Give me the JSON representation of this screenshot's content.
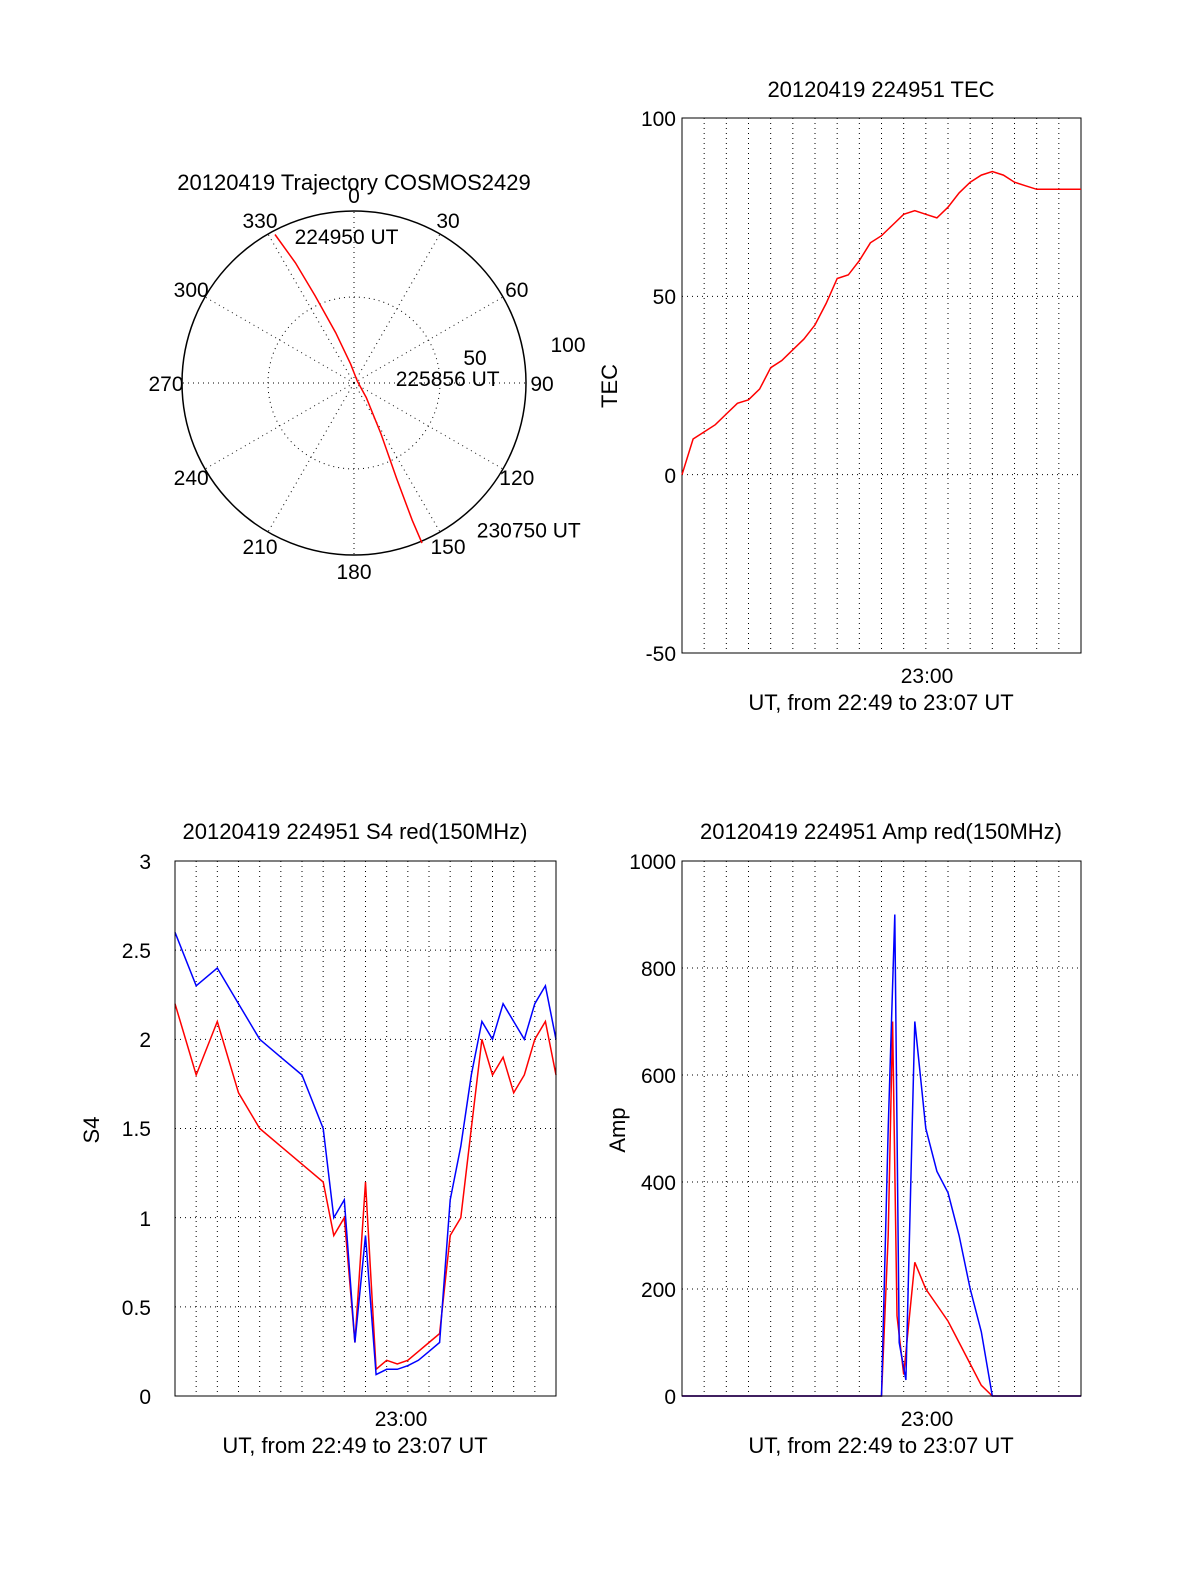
{
  "chart_data": [
    {
      "type": "polar",
      "title": "20120419 Trajectory COSMOS2429",
      "angle_labels": [
        "0",
        "30",
        "60",
        "90",
        "120",
        "150",
        "180",
        "210",
        "240",
        "270",
        "300",
        "330"
      ],
      "radial_labels": [
        "50",
        "100"
      ],
      "track_color": "#ff0000",
      "track": [
        {
          "az": 332,
          "zen": 88
        },
        {
          "az": 334,
          "zen": 70
        },
        {
          "az": 336,
          "zen": 50
        },
        {
          "az": 340,
          "zen": 28
        },
        {
          "az": 350,
          "zen": 10
        },
        {
          "az": 60,
          "zen": 2
        },
        {
          "az": 140,
          "zen": 10
        },
        {
          "az": 152,
          "zen": 30
        },
        {
          "az": 156,
          "zen": 55
        },
        {
          "az": 157,
          "zen": 78
        },
        {
          "az": 157,
          "zen": 91
        }
      ],
      "annotations": [
        {
          "text": "224950 UT",
          "az": 338,
          "zen": 83
        },
        {
          "text": "225856 UT",
          "az": 83,
          "zen": 22
        },
        {
          "text": "230750 UT",
          "az": 140,
          "zen": 100
        }
      ]
    },
    {
      "type": "line",
      "title": "20120419 224951 TEC",
      "ylabel": "TEC",
      "xlabel": "UT, from 22:49 to 23:07 UT",
      "ylim": [
        -50,
        100
      ],
      "yticks": [
        "100",
        "50",
        "0",
        "-50"
      ],
      "xtick_label": "23:00",
      "series": [
        {
          "color": "#ff0000",
          "x_min": [
            0,
            0.5,
            1,
            1.5,
            2,
            2.5,
            3,
            3.5,
            4,
            4.5,
            5,
            5.5,
            6,
            6.5,
            7,
            7.5,
            8,
            8.5,
            9,
            9.5,
            10,
            10.5,
            11,
            11.5,
            12,
            12.5,
            13,
            13.5,
            14,
            14.5,
            15,
            15.5,
            16,
            16.5,
            17,
            17.5,
            18
          ],
          "values": [
            0,
            10,
            12,
            14,
            17,
            20,
            21,
            24,
            30,
            32,
            35,
            38,
            42,
            48,
            55,
            56,
            60,
            65,
            67,
            70,
            73,
            74,
            73,
            72,
            75,
            79,
            82,
            84,
            85,
            84,
            82,
            81,
            80,
            80,
            80,
            80,
            80
          ]
        }
      ]
    },
    {
      "type": "line",
      "title": "20120419 224951 S4 red(150MHz)",
      "ylabel": "S4",
      "xlabel": "UT, from 22:49 to 23:07 UT",
      "ylim": [
        0,
        3
      ],
      "yticks": [
        "3",
        "2.5",
        "2",
        "1.5",
        "1",
        "0.5",
        "0"
      ],
      "xtick_label": "23:00",
      "series": [
        {
          "color": "#ff0000",
          "x_min": [
            0,
            1,
            2,
            3,
            4,
            5,
            6,
            7,
            7.5,
            8,
            8.5,
            9,
            9.5,
            10,
            10.5,
            11,
            11.5,
            12,
            12.5,
            13,
            13.5,
            14,
            14.5,
            15,
            15.5,
            16,
            16.5,
            17,
            17.5,
            18
          ],
          "values": [
            2.2,
            1.8,
            2.1,
            1.7,
            1.5,
            1.4,
            1.3,
            1.2,
            0.9,
            1.0,
            0.3,
            1.2,
            0.15,
            0.2,
            0.18,
            0.2,
            0.25,
            0.3,
            0.35,
            0.9,
            1.0,
            1.5,
            2.0,
            1.8,
            1.9,
            1.7,
            1.8,
            2.0,
            2.1,
            1.8
          ]
        },
        {
          "color": "#0000ff",
          "x_min": [
            0,
            1,
            2,
            3,
            4,
            5,
            6,
            7,
            7.5,
            8,
            8.5,
            9,
            9.5,
            10,
            10.5,
            11,
            11.5,
            12,
            12.5,
            13,
            13.5,
            14,
            14.5,
            15,
            15.5,
            16,
            16.5,
            17,
            17.5,
            18
          ],
          "values": [
            2.6,
            2.3,
            2.4,
            2.2,
            2.0,
            1.9,
            1.8,
            1.5,
            1.0,
            1.1,
            0.3,
            0.9,
            0.12,
            0.15,
            0.15,
            0.17,
            0.2,
            0.25,
            0.3,
            1.1,
            1.4,
            1.8,
            2.1,
            2.0,
            2.2,
            2.1,
            2.0,
            2.2,
            2.3,
            2.0
          ]
        }
      ]
    },
    {
      "type": "line",
      "title": "20120419 224951 Amp red(150MHz)",
      "ylabel": "Amp",
      "xlabel": "UT, from 22:49 to 23:07 UT",
      "ylim": [
        0,
        1000
      ],
      "yticks": [
        "1000",
        "800",
        "600",
        "400",
        "200",
        "0"
      ],
      "xtick_label": "23:00",
      "series": [
        {
          "color": "#ff0000",
          "x_min": [
            0,
            2,
            4,
            6,
            8,
            9.0,
            9.3,
            9.5,
            9.7,
            10.0,
            10.5,
            11,
            11.5,
            12,
            12.5,
            13,
            13.5,
            14,
            16,
            18
          ],
          "values": [
            0,
            0,
            0,
            0,
            0,
            0,
            300,
            700,
            150,
            40,
            250,
            200,
            170,
            140,
            100,
            60,
            20,
            0,
            0,
            0
          ]
        },
        {
          "color": "#0000ff",
          "x_min": [
            0,
            2,
            4,
            6,
            8,
            9.0,
            9.3,
            9.6,
            9.8,
            10.1,
            10.5,
            11,
            11.5,
            12,
            12.5,
            13,
            13.5,
            14,
            16,
            18
          ],
          "values": [
            0,
            0,
            0,
            0,
            0,
            0,
            500,
            900,
            100,
            30,
            700,
            500,
            420,
            380,
            300,
            200,
            120,
            0,
            0,
            0
          ]
        }
      ]
    }
  ]
}
